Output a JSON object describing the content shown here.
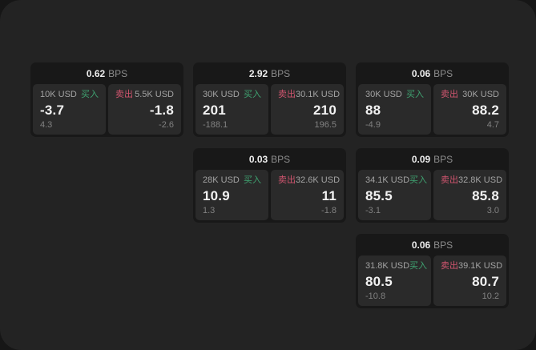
{
  "labels": {
    "bps_unit": "BPS",
    "buy": "买入",
    "sell": "卖出"
  },
  "colors": {
    "page_background": "#232323",
    "backdrop": "#161616",
    "card_background": "#181818",
    "panel_background": "#2a2a2a",
    "buy_accent": "#3fa371",
    "sell_accent": "#d1556f",
    "primary_text": "#f2f2f2",
    "muted_text": "#a3a3a3"
  },
  "cards": [
    {
      "bps": "0.62",
      "buy": {
        "amount": "10K USD",
        "price": "-3.7",
        "sub": "4.3"
      },
      "sell": {
        "amount": "5.5K USD",
        "price": "-1.8",
        "sub": "-2.6"
      }
    },
    {
      "bps": "2.92",
      "buy": {
        "amount": "30K USD",
        "price": "201",
        "sub": "-188.1"
      },
      "sell": {
        "amount": "30.1K USD",
        "price": "210",
        "sub": "196.5"
      }
    },
    {
      "bps": "0.06",
      "buy": {
        "amount": "30K USD",
        "price": "88",
        "sub": "-4.9"
      },
      "sell": {
        "amount": "30K USD",
        "price": "88.2",
        "sub": "4.7"
      }
    },
    {
      "bps": "0.03",
      "buy": {
        "amount": "28K USD",
        "price": "10.9",
        "sub": "1.3"
      },
      "sell": {
        "amount": "32.6K USD",
        "price": "11",
        "sub": "-1.8"
      }
    },
    {
      "bps": "0.09",
      "buy": {
        "amount": "34.1K USD",
        "price": "85.5",
        "sub": "-3.1"
      },
      "sell": {
        "amount": "32.8K USD",
        "price": "85.8",
        "sub": "3.0"
      }
    },
    {
      "bps": "0.06",
      "buy": {
        "amount": "31.8K USD",
        "price": "80.5",
        "sub": "-10.8"
      },
      "sell": {
        "amount": "39.1K USD",
        "price": "80.7",
        "sub": "10.2"
      }
    }
  ]
}
